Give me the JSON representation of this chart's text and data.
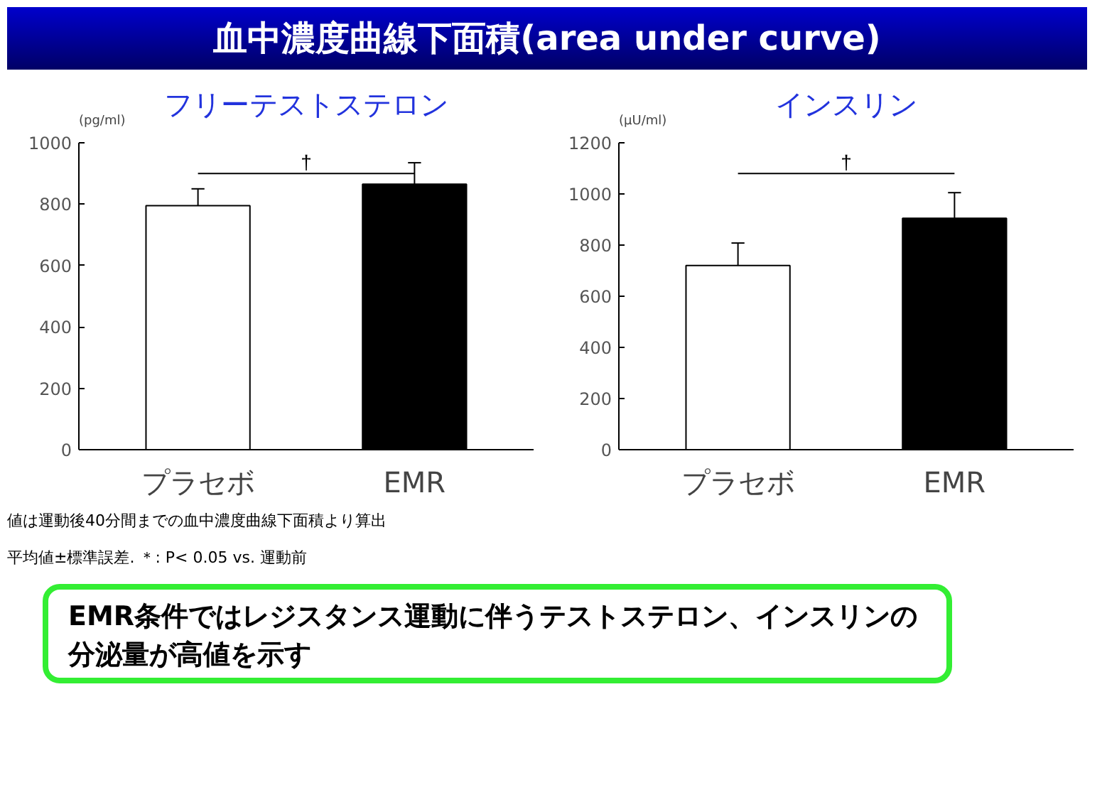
{
  "chart_data": [
    {
      "type": "bar",
      "title": "フリーテストステロン",
      "ylabel": "(pg/ml)",
      "categories": [
        "プラセボ",
        "EMR"
      ],
      "values": [
        795,
        865
      ],
      "colors": [
        "#ffffff",
        "#000000"
      ],
      "errors": [
        [
          795,
          850
        ],
        [
          865,
          935
        ]
      ],
      "ylim": [
        0,
        1000
      ],
      "yticks": [
        0,
        200,
        400,
        600,
        800,
        1000
      ],
      "grid": false,
      "annotations": [
        "血中濃度曲線下面積(area under curve)",
        "†"
      ]
    },
    {
      "type": "bar",
      "title": "インスリン",
      "ylabel": "(μU/ml)",
      "categories": [
        "プラセボ",
        "EMR"
      ],
      "values": [
        720,
        905
      ],
      "colors": [
        "#ffffff",
        "#000000"
      ],
      "errors": [
        [
          720,
          808
        ],
        [
          905,
          1005
        ]
      ],
      "ylim": [
        0,
        1200
      ],
      "yticks": [
        0,
        200,
        400,
        600,
        800,
        1000,
        1200
      ],
      "grid": false,
      "annotations": [
        "†",
        "値は運動後40分間までの血中濃度曲線下面積より算出",
        "平均値±標準誤差. ＊: P< 0.05 vs. 運動前",
        "EMR条件ではレジスタンス運動に伴うテストステロン、インスリンの分泌量が高値を示す"
      ]
    }
  ]
}
